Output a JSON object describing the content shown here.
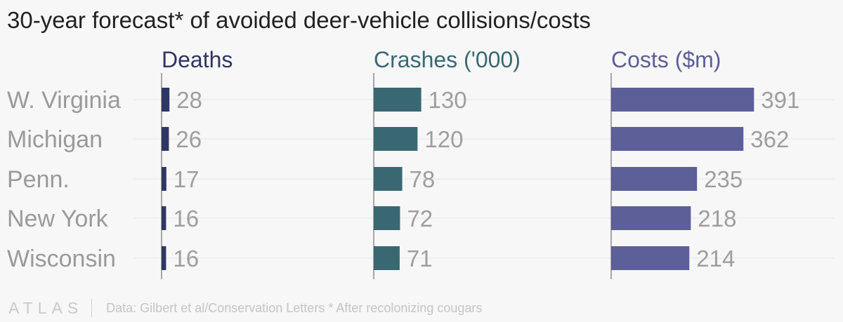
{
  "title": "30-year forecast* of avoided deer-vehicle collisions/costs",
  "footer": {
    "logo": "ATLAS",
    "source": "Data: Gilbert et al/Conservation Letters * After recolonizing cougars"
  },
  "colors": {
    "background": "#f7f7f7",
    "gridline": "#e6e6e6",
    "axis": "#8c8c8c",
    "category_label": "#9a9a9a",
    "value_label": "#9e9e9e",
    "title": "#222222"
  },
  "chart_data": {
    "type": "bar",
    "orientation": "horizontal",
    "title": "30-year forecast* of avoided deer-vehicle collisions/costs",
    "categories": [
      "W. Virginia",
      "Michigan",
      "Penn.",
      "New York",
      "Wisconsin"
    ],
    "series": [
      {
        "name": "Deaths",
        "values": [
          28,
          26,
          17,
          16,
          16
        ],
        "color": "#2f3663",
        "xlim": [
          0,
          300
        ]
      },
      {
        "name": "Crashes ('000)",
        "values": [
          130,
          120,
          78,
          72,
          71
        ],
        "color": "#3a6872",
        "xlim": [
          0,
          500
        ]
      },
      {
        "name": "Costs ($m)",
        "values": [
          391,
          362,
          235,
          218,
          214
        ],
        "color": "#5c5f98",
        "xlim": [
          0,
          500
        ]
      }
    ],
    "grid": true,
    "legend": "none",
    "data_labels": true,
    "layout": "small-multiples side by side"
  }
}
